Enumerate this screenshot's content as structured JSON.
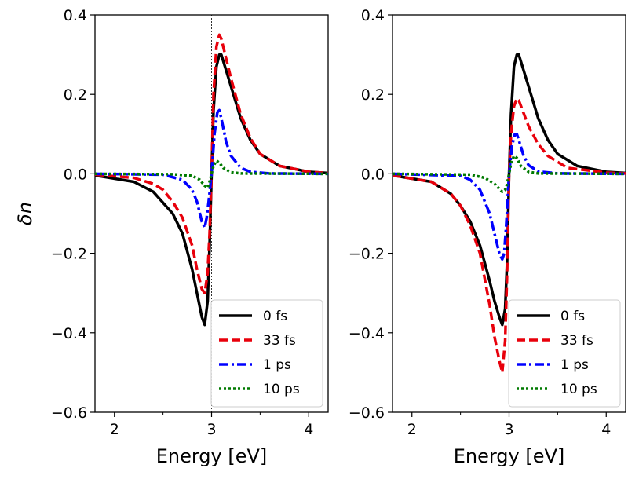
{
  "chart_data": [
    {
      "type": "line",
      "xlabel": "Energy [eV]",
      "ylabel": "δn",
      "xlim": [
        1.8,
        4.2
      ],
      "ylim": [
        -0.6,
        0.4
      ],
      "xticks": [
        "2",
        "3",
        "4"
      ],
      "yticks": [
        "−0.6",
        "−0.4",
        "−0.2",
        "0.0",
        "0.2",
        "0.4"
      ],
      "vline_x": 3.0,
      "hline_y": 0.0,
      "legend_position": "lower-right",
      "series": [
        {
          "name": "0 fs",
          "color": "#000000",
          "dash": "solid",
          "width": 3.5,
          "x": [
            1.8,
            2.2,
            2.4,
            2.6,
            2.7,
            2.8,
            2.85,
            2.9,
            2.93,
            2.96,
            2.98,
            3.0,
            3.02,
            3.05,
            3.08,
            3.1,
            3.2,
            3.3,
            3.4,
            3.5,
            3.7,
            4.0,
            4.2
          ],
          "y": [
            -0.004,
            -0.02,
            -0.045,
            -0.1,
            -0.15,
            -0.24,
            -0.3,
            -0.36,
            -0.38,
            -0.32,
            -0.18,
            0.0,
            0.16,
            0.27,
            0.3,
            0.3,
            0.22,
            0.14,
            0.085,
            0.05,
            0.02,
            0.005,
            0.002
          ]
        },
        {
          "name": "33 fs",
          "color": "#e8000b",
          "dash": "dashed",
          "width": 3.5,
          "x": [
            1.8,
            2.2,
            2.4,
            2.5,
            2.6,
            2.7,
            2.8,
            2.85,
            2.9,
            2.93,
            2.96,
            2.98,
            3.0,
            3.02,
            3.05,
            3.08,
            3.1,
            3.2,
            3.3,
            3.4,
            3.5,
            3.7,
            4.0,
            4.2
          ],
          "y": [
            -0.002,
            -0.01,
            -0.025,
            -0.04,
            -0.07,
            -0.11,
            -0.18,
            -0.24,
            -0.29,
            -0.3,
            -0.25,
            -0.15,
            0.0,
            0.2,
            0.32,
            0.35,
            0.34,
            0.24,
            0.15,
            0.09,
            0.05,
            0.02,
            0.005,
            0.002
          ]
        },
        {
          "name": "1 ps",
          "color": "#0000ff",
          "dash": "dashdot",
          "width": 3.5,
          "x": [
            1.8,
            2.5,
            2.7,
            2.8,
            2.85,
            2.9,
            2.93,
            2.95,
            2.97,
            3.0,
            3.03,
            3.06,
            3.08,
            3.1,
            3.15,
            3.2,
            3.3,
            3.4,
            3.6,
            4.2
          ],
          "y": [
            0.0,
            -0.002,
            -0.015,
            -0.04,
            -0.07,
            -0.12,
            -0.135,
            -0.11,
            -0.07,
            0.0,
            0.1,
            0.155,
            0.16,
            0.14,
            0.08,
            0.045,
            0.015,
            0.005,
            0.001,
            0.0
          ]
        },
        {
          "name": "10 ps",
          "color": "#007a00",
          "dash": "dotted",
          "width": 3.5,
          "x": [
            1.8,
            2.6,
            2.8,
            2.88,
            2.93,
            2.96,
            2.98,
            3.0,
            3.02,
            3.05,
            3.08,
            3.12,
            3.2,
            3.3,
            4.2
          ],
          "y": [
            0.0,
            -0.001,
            -0.005,
            -0.015,
            -0.03,
            -0.035,
            -0.02,
            0.0,
            0.02,
            0.033,
            0.028,
            0.015,
            0.004,
            0.001,
            0.0
          ]
        }
      ]
    },
    {
      "type": "line",
      "xlabel": "Energy [eV]",
      "ylabel": "",
      "xlim": [
        1.8,
        4.2
      ],
      "ylim": [
        -0.6,
        0.4
      ],
      "xticks": [
        "2",
        "3",
        "4"
      ],
      "yticks": [
        "−0.6",
        "−0.4",
        "−0.2",
        "0.0",
        "0.2",
        "0.4"
      ],
      "vline_x": 3.0,
      "hline_y": 0.0,
      "legend_position": "lower-right",
      "series": [
        {
          "name": "0 fs",
          "color": "#000000",
          "dash": "solid",
          "width": 3.5,
          "x": [
            1.8,
            2.2,
            2.4,
            2.5,
            2.6,
            2.7,
            2.8,
            2.85,
            2.9,
            2.93,
            2.96,
            2.98,
            3.0,
            3.02,
            3.05,
            3.08,
            3.1,
            3.2,
            3.3,
            3.4,
            3.5,
            3.7,
            4.0,
            4.2
          ],
          "y": [
            -0.004,
            -0.02,
            -0.05,
            -0.08,
            -0.12,
            -0.18,
            -0.27,
            -0.32,
            -0.36,
            -0.38,
            -0.34,
            -0.22,
            0.0,
            0.15,
            0.27,
            0.3,
            0.3,
            0.22,
            0.14,
            0.085,
            0.05,
            0.02,
            0.005,
            0.002
          ]
        },
        {
          "name": "33 fs",
          "color": "#e8000b",
          "dash": "dashed",
          "width": 3.5,
          "x": [
            1.8,
            2.2,
            2.4,
            2.5,
            2.6,
            2.7,
            2.8,
            2.85,
            2.9,
            2.93,
            2.96,
            2.98,
            3.0,
            3.02,
            3.05,
            3.08,
            3.1,
            3.2,
            3.3,
            3.4,
            3.6,
            4.0,
            4.2
          ],
          "y": [
            -0.004,
            -0.02,
            -0.05,
            -0.08,
            -0.13,
            -0.2,
            -0.33,
            -0.41,
            -0.47,
            -0.5,
            -0.42,
            -0.25,
            0.0,
            0.1,
            0.17,
            0.19,
            0.185,
            0.12,
            0.075,
            0.045,
            0.015,
            0.003,
            0.001
          ]
        },
        {
          "name": "1 ps",
          "color": "#0000ff",
          "dash": "dashdot",
          "width": 3.5,
          "x": [
            1.8,
            2.5,
            2.6,
            2.7,
            2.8,
            2.85,
            2.9,
            2.93,
            2.95,
            2.97,
            3.0,
            3.03,
            3.06,
            3.08,
            3.1,
            3.15,
            3.2,
            3.3,
            3.5,
            4.2
          ],
          "y": [
            0.0,
            -0.005,
            -0.015,
            -0.04,
            -0.1,
            -0.15,
            -0.2,
            -0.215,
            -0.2,
            -0.13,
            0.0,
            0.07,
            0.1,
            0.1,
            0.085,
            0.045,
            0.022,
            0.006,
            0.001,
            0.0
          ]
        },
        {
          "name": "10 ps",
          "color": "#007a00",
          "dash": "dotted",
          "width": 3.5,
          "x": [
            1.8,
            2.6,
            2.75,
            2.85,
            2.9,
            2.93,
            2.96,
            2.98,
            3.0,
            3.02,
            3.05,
            3.08,
            3.12,
            3.2,
            3.3,
            4.2
          ],
          "y": [
            0.0,
            -0.002,
            -0.01,
            -0.025,
            -0.038,
            -0.045,
            -0.04,
            -0.025,
            0.0,
            0.025,
            0.045,
            0.04,
            0.02,
            0.005,
            0.001,
            0.0
          ]
        }
      ]
    }
  ]
}
